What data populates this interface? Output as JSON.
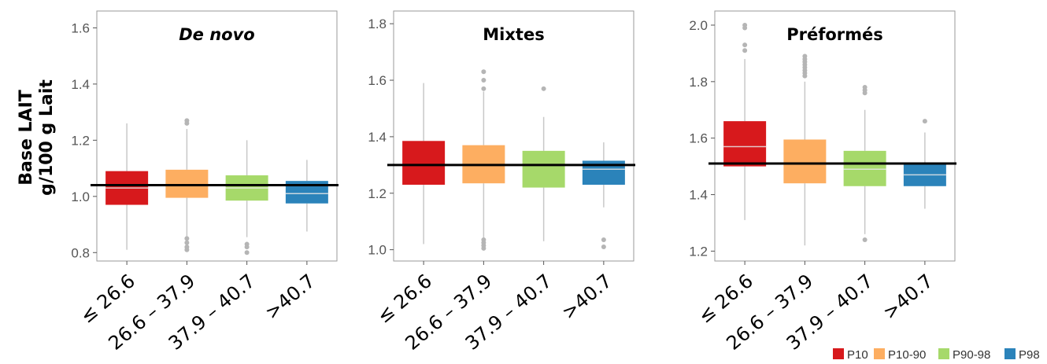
{
  "y_axis_label": [
    "Base LAIT",
    "g/100 g Lait"
  ],
  "legend": {
    "position": "bottom-right",
    "items": [
      {
        "label": "P10",
        "color": "#d7191c"
      },
      {
        "label": "P10-90",
        "color": "#fdae61"
      },
      {
        "label": "P90-98",
        "color": "#a6d96a"
      },
      {
        "label": "P98",
        "color": "#2b83ba"
      }
    ]
  },
  "chart_data": [
    {
      "type": "box",
      "title": "De novo",
      "title_italic": true,
      "categories": [
        "≤ 26.6",
        "26.6 – 37.9",
        "37.9 – 40.7",
        ">40.7"
      ],
      "ylim": [
        0.77,
        1.66
      ],
      "yticks": [
        0.8,
        1.0,
        1.2,
        1.4,
        1.6
      ],
      "ytick_labels": [
        "0.8",
        "1.0",
        "1.2",
        "1.4",
        "1.6"
      ],
      "reference_line": 1.04,
      "grid": false,
      "boxes": [
        {
          "q1": 0.97,
          "median": 1.03,
          "q3": 1.09,
          "whisker_low": 0.81,
          "whisker_high": 1.26,
          "outliers": []
        },
        {
          "q1": 0.995,
          "median": 1.04,
          "q3": 1.095,
          "whisker_low": 0.855,
          "whisker_high": 1.24,
          "outliers": [
            1.27,
            1.26,
            0.85,
            0.835,
            0.82,
            0.81
          ]
        },
        {
          "q1": 0.985,
          "median": 1.03,
          "q3": 1.075,
          "whisker_low": 0.855,
          "whisker_high": 1.2,
          "outliers": [
            0.83,
            0.82,
            0.8
          ]
        },
        {
          "q1": 0.975,
          "median": 1.01,
          "q3": 1.055,
          "whisker_low": 0.875,
          "whisker_high": 1.13,
          "outliers": []
        }
      ]
    },
    {
      "type": "box",
      "title": "Mixtes",
      "title_italic": false,
      "categories": [
        "≤ 26.6",
        "26.6 – 37.9",
        "37.9 – 40.7",
        ">40.7"
      ],
      "ylim": [
        0.96,
        1.845
      ],
      "yticks": [
        1.0,
        1.2,
        1.4,
        1.6,
        1.8
      ],
      "ytick_labels": [
        "1.0",
        "1.2",
        "1.4",
        "1.6",
        "1.8"
      ],
      "reference_line": 1.3,
      "grid": false,
      "boxes": [
        {
          "q1": 1.23,
          "median": 1.3,
          "q3": 1.385,
          "whisker_low": 1.02,
          "whisker_high": 1.59,
          "outliers": []
        },
        {
          "q1": 1.235,
          "median": 1.3,
          "q3": 1.37,
          "whisker_low": 1.04,
          "whisker_high": 1.56,
          "outliers": [
            1.63,
            1.6,
            1.57,
            1.035,
            1.025,
            1.015,
            1.005
          ]
        },
        {
          "q1": 1.22,
          "median": 1.3,
          "q3": 1.35,
          "whisker_low": 1.03,
          "whisker_high": 1.47,
          "outliers": [
            1.57
          ]
        },
        {
          "q1": 1.23,
          "median": 1.285,
          "q3": 1.315,
          "whisker_low": 1.15,
          "whisker_high": 1.38,
          "outliers": [
            1.035,
            1.01
          ]
        }
      ]
    },
    {
      "type": "box",
      "title": "Préformés",
      "title_italic": false,
      "categories": [
        "≤ 26.6",
        "26.6 – 37.9",
        "37.9 – 40.7",
        ">40.7"
      ],
      "ylim": [
        1.165,
        2.05
      ],
      "yticks": [
        1.2,
        1.4,
        1.6,
        1.8,
        2.0
      ],
      "ytick_labels": [
        "1.2",
        "1.4",
        "1.6",
        "1.8",
        "2.0"
      ],
      "reference_line": 1.51,
      "grid": false,
      "boxes": [
        {
          "q1": 1.5,
          "median": 1.57,
          "q3": 1.66,
          "whisker_low": 1.31,
          "whisker_high": 1.88,
          "outliers": [
            2.0,
            1.99,
            1.93,
            1.91
          ]
        },
        {
          "q1": 1.44,
          "median": 1.51,
          "q3": 1.595,
          "whisker_low": 1.22,
          "whisker_high": 1.8,
          "outliers": [
            1.89,
            1.88,
            1.87,
            1.86,
            1.85,
            1.84,
            1.83,
            1.82
          ]
        },
        {
          "q1": 1.43,
          "median": 1.49,
          "q3": 1.555,
          "whisker_low": 1.26,
          "whisker_high": 1.7,
          "outliers": [
            1.78,
            1.77,
            1.76,
            1.24
          ]
        },
        {
          "q1": 1.43,
          "median": 1.47,
          "q3": 1.51,
          "whisker_low": 1.35,
          "whisker_high": 1.62,
          "outliers": [
            1.66
          ]
        }
      ]
    }
  ]
}
